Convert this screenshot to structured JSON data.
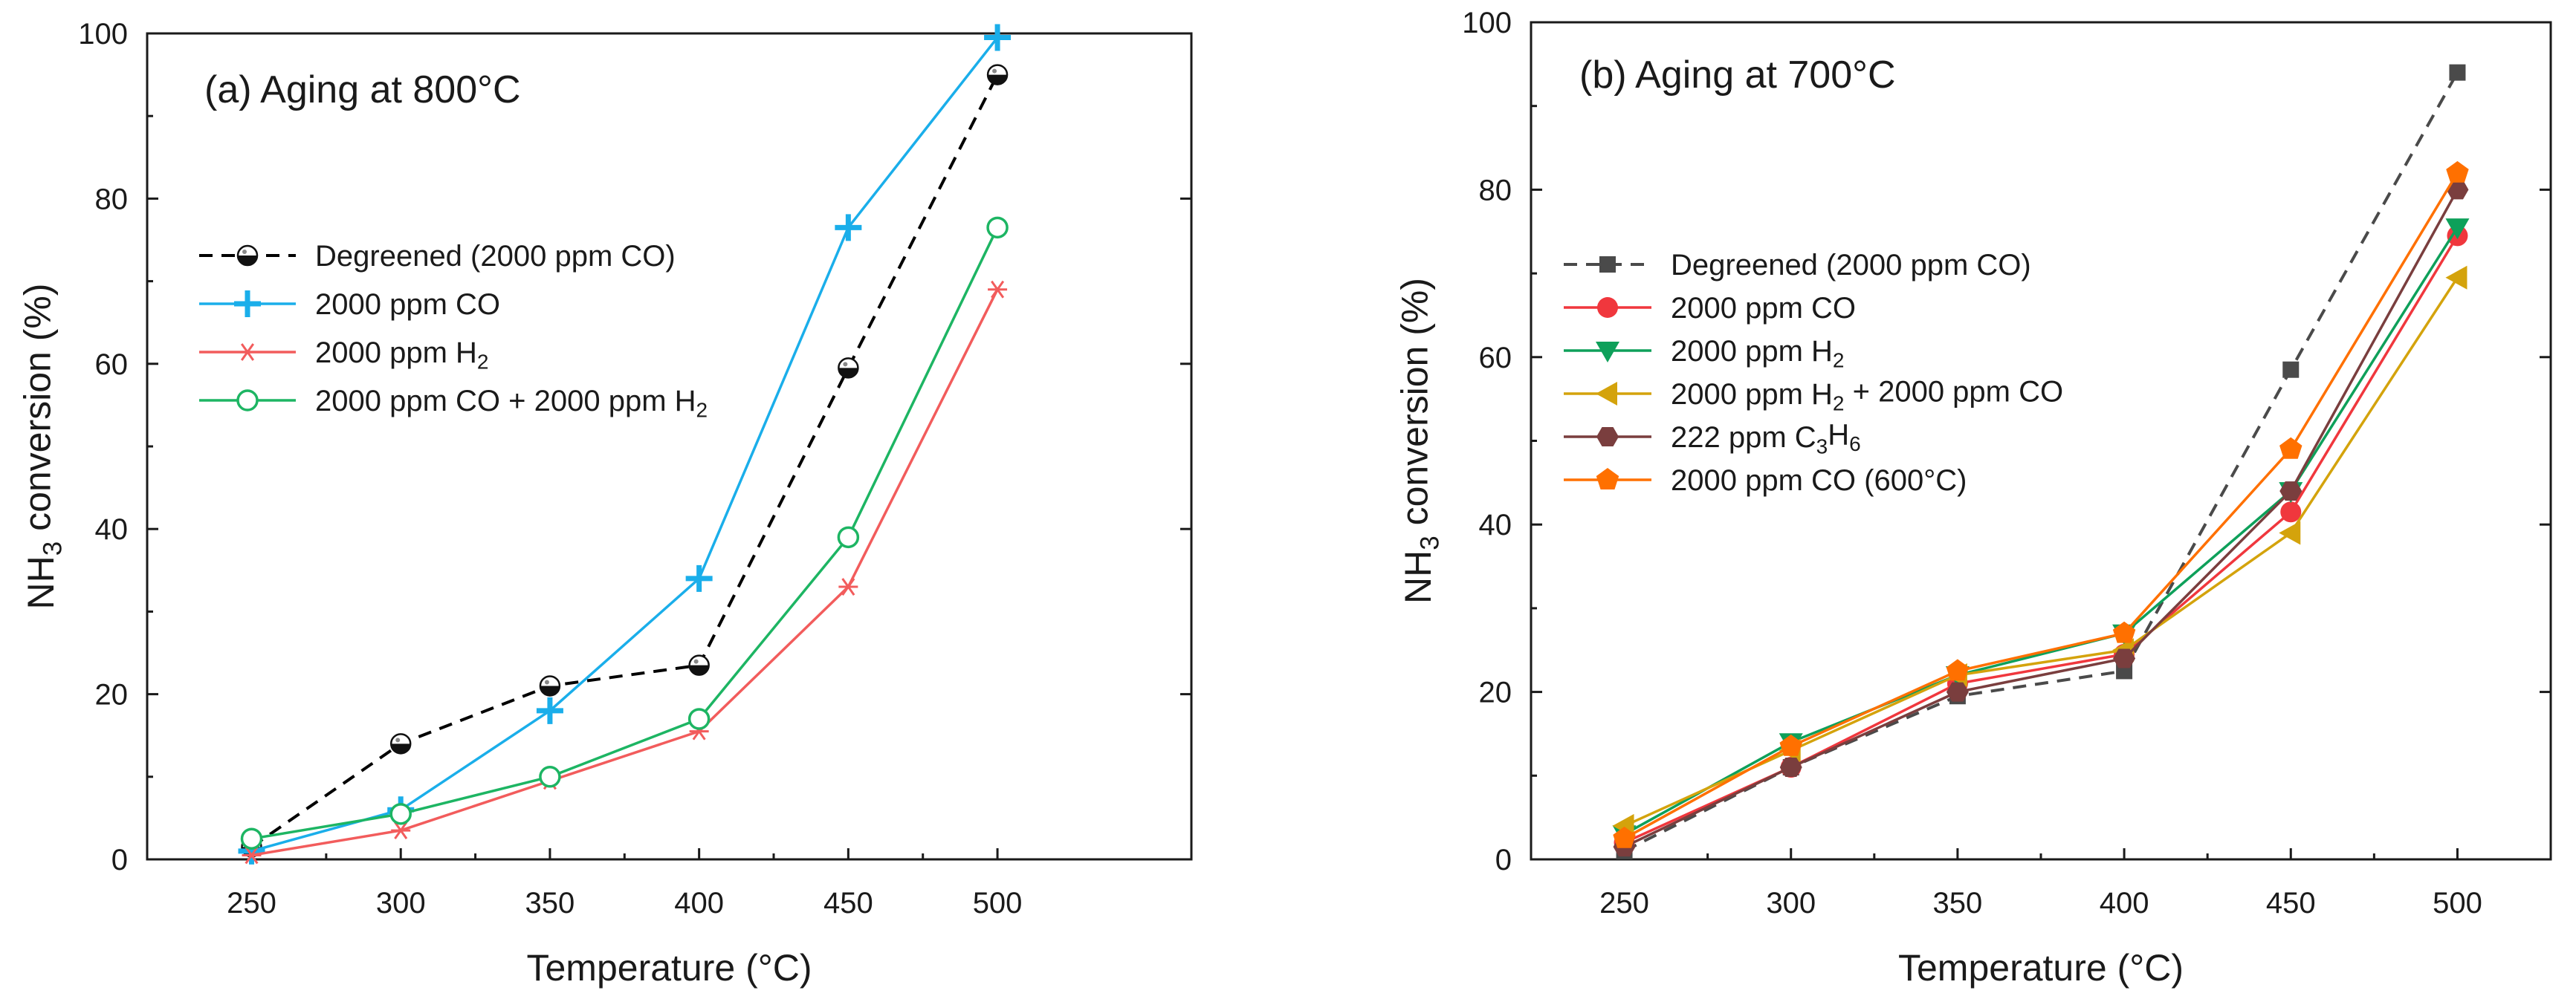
{
  "chart_data": [
    {
      "type": "line",
      "title": "(a) Aging at 800°C",
      "xlabel": "Temperature (°C)",
      "ylabel": "NH3 conversion (%)",
      "xlim": [
        215,
        565
      ],
      "ylim": [
        0,
        100
      ],
      "xticks": [
        250,
        300,
        350,
        400,
        450,
        500
      ],
      "yticks": [
        0,
        20,
        40,
        60,
        80,
        100
      ],
      "x": [
        250,
        300,
        350,
        400,
        450,
        500
      ],
      "legend_position": "upper-left",
      "series": [
        {
          "name": "Degreened (2000 ppm CO)",
          "color": "#000000",
          "dash": "dashed",
          "marker": "half-circle",
          "values": [
            1.5,
            14,
            21,
            23.5,
            59.5,
            95
          ]
        },
        {
          "name": "2000 ppm CO",
          "color": "#1aaeea",
          "dash": "solid",
          "marker": "cross",
          "values": [
            1,
            6,
            18,
            34,
            76.5,
            99.5
          ]
        },
        {
          "name": "2000 ppm H2",
          "color": "#f25c5c",
          "dash": "solid",
          "marker": "asterisk",
          "values": [
            0.5,
            3.5,
            9.5,
            15.5,
            33,
            69
          ]
        },
        {
          "name": "2000 ppm CO + 2000 ppm H2",
          "color": "#1db563",
          "dash": "solid",
          "marker": "open-circle",
          "values": [
            2.5,
            5.5,
            10,
            17,
            39,
            76.5
          ]
        }
      ]
    },
    {
      "type": "line",
      "title": "(b) Aging at 700°C",
      "xlabel": "Temperature (°C)",
      "ylabel": "NH3 conversion (%)",
      "xlim": [
        222,
        528
      ],
      "ylim": [
        0,
        100
      ],
      "xticks": [
        250,
        300,
        350,
        400,
        450,
        500
      ],
      "yticks": [
        0,
        20,
        40,
        60,
        80,
        100
      ],
      "x": [
        250,
        300,
        350,
        400,
        450,
        500
      ],
      "legend_position": "upper-left",
      "series": [
        {
          "name": "Degreened (2000 ppm CO)",
          "color": "#4a4a4a",
          "dash": "dashed",
          "marker": "square",
          "values": [
            1,
            11,
            19.5,
            22.5,
            58.5,
            94
          ]
        },
        {
          "name": "2000 ppm CO",
          "color": "#f0373d",
          "dash": "solid",
          "marker": "circle",
          "values": [
            2,
            11,
            21,
            24.5,
            41.5,
            74.5
          ]
        },
        {
          "name": "2000 ppm H2",
          "color": "#0ea05a",
          "dash": "solid",
          "marker": "triangle-down",
          "values": [
            3,
            14,
            22,
            27,
            44,
            75.5
          ]
        },
        {
          "name": "2000 ppm H2 + 2000 ppm CO",
          "color": "#d4a30c",
          "dash": "solid",
          "marker": "triangle-left",
          "values": [
            4,
            13,
            22,
            25,
            39,
            69.5
          ]
        },
        {
          "name": "222 ppm C3H6",
          "color": "#7a3e3e",
          "dash": "solid",
          "marker": "hexagon",
          "values": [
            1.5,
            11,
            20,
            24,
            44,
            80
          ]
        },
        {
          "name": "2000 ppm CO (600°C)",
          "color": "#ff7000",
          "dash": "solid",
          "marker": "pentagon",
          "values": [
            2.5,
            13.5,
            22.5,
            27,
            49,
            82
          ]
        }
      ]
    }
  ]
}
